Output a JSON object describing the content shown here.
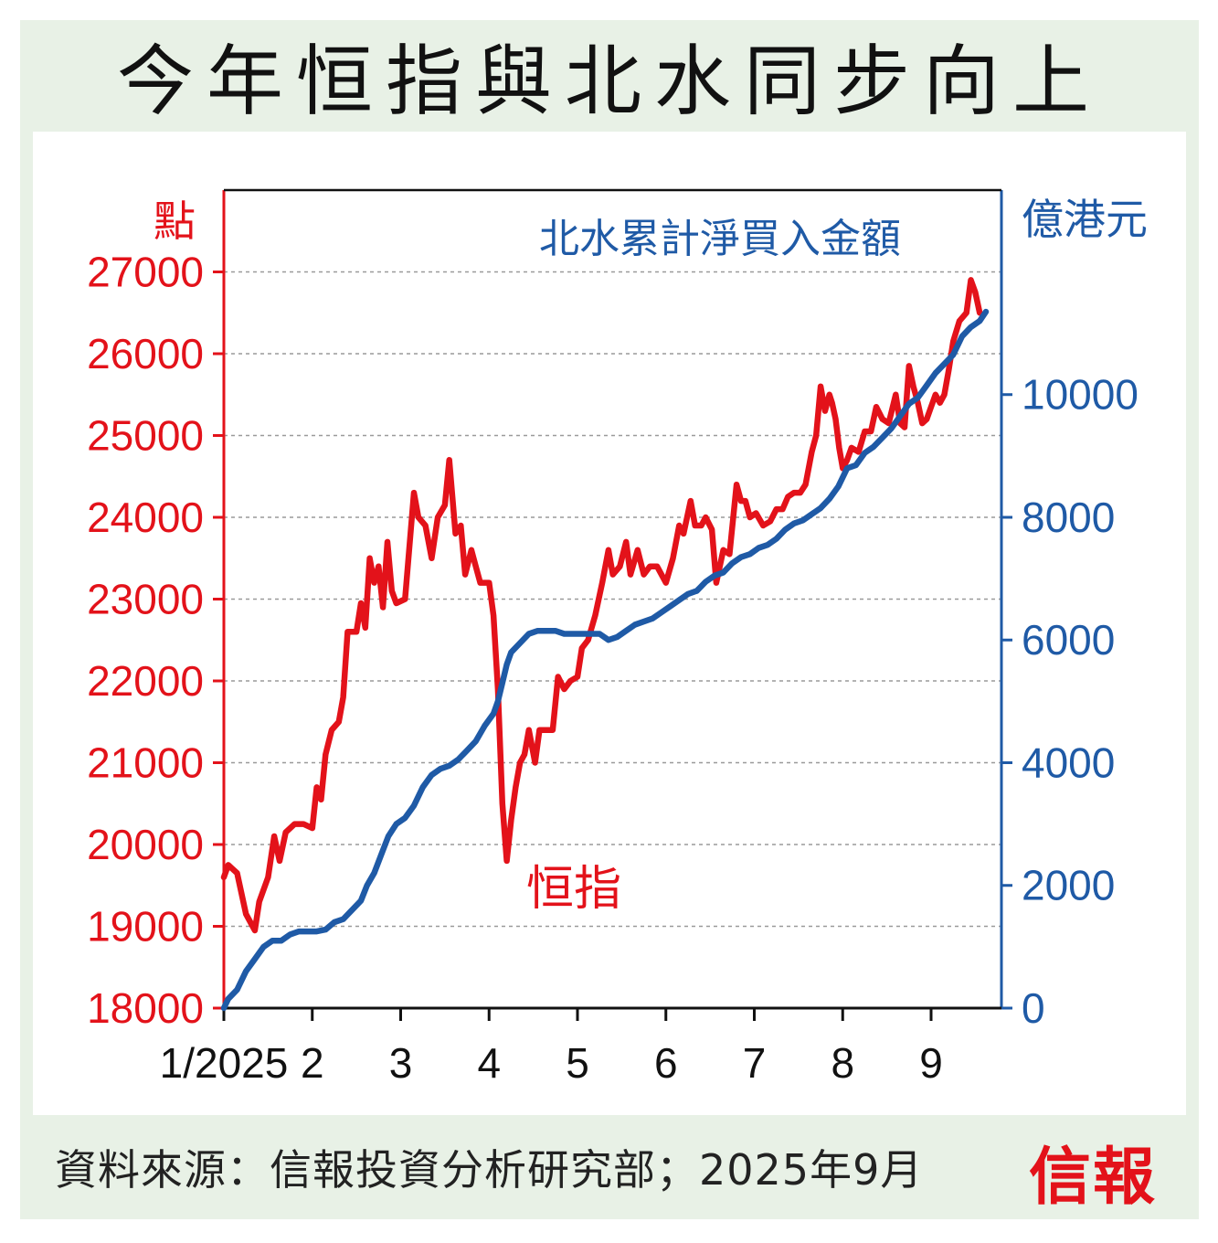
{
  "title": "今年恒指與北水同步向上",
  "source": "資料來源：信報投資分析研究部；2025年9月",
  "logo": "信報",
  "colors": {
    "hsi": "#e3121a",
    "northbound": "#1f5aa6",
    "frame": "#e8f1e6"
  },
  "chart_data": {
    "type": "line",
    "left_axis": {
      "unit_label": "點",
      "ylim": [
        18000,
        28000
      ],
      "ticks": [
        18000,
        19000,
        20000,
        21000,
        22000,
        23000,
        24000,
        25000,
        26000,
        27000
      ]
    },
    "right_axis": {
      "unit_label": "億港元",
      "ylim": [
        0,
        13333
      ],
      "ticks": [
        0,
        2000,
        4000,
        6000,
        8000,
        10000
      ]
    },
    "x_axis": {
      "ticks": [
        {
          "label": "1/2025",
          "x": 0
        },
        {
          "label": "2",
          "x": 1
        },
        {
          "label": "3",
          "x": 2
        },
        {
          "label": "4",
          "x": 3
        },
        {
          "label": "5",
          "x": 4
        },
        {
          "label": "6",
          "x": 5
        },
        {
          "label": "7",
          "x": 6
        },
        {
          "label": "8",
          "x": 7
        },
        {
          "label": "9",
          "x": 8
        }
      ],
      "xlim": [
        0,
        8.75
      ]
    },
    "grid": "horizontal dashed",
    "series": [
      {
        "name": "恒指",
        "axis": "left",
        "points": [
          [
            0.0,
            19600
          ],
          [
            0.05,
            19750
          ],
          [
            0.15,
            19650
          ],
          [
            0.25,
            19150
          ],
          [
            0.35,
            18950
          ],
          [
            0.4,
            19300
          ],
          [
            0.5,
            19600
          ],
          [
            0.57,
            20100
          ],
          [
            0.63,
            19800
          ],
          [
            0.7,
            20150
          ],
          [
            0.8,
            20250
          ],
          [
            0.9,
            20250
          ],
          [
            1.0,
            20200
          ],
          [
            1.05,
            20700
          ],
          [
            1.1,
            20550
          ],
          [
            1.15,
            21100
          ],
          [
            1.22,
            21400
          ],
          [
            1.3,
            21500
          ],
          [
            1.35,
            21800
          ],
          [
            1.4,
            22600
          ],
          [
            1.5,
            22600
          ],
          [
            1.55,
            22950
          ],
          [
            1.6,
            22650
          ],
          [
            1.65,
            23500
          ],
          [
            1.7,
            23200
          ],
          [
            1.75,
            23400
          ],
          [
            1.8,
            22900
          ],
          [
            1.85,
            23700
          ],
          [
            1.9,
            23100
          ],
          [
            1.95,
            22950
          ],
          [
            2.05,
            23000
          ],
          [
            2.15,
            24300
          ],
          [
            2.2,
            24000
          ],
          [
            2.28,
            23900
          ],
          [
            2.35,
            23500
          ],
          [
            2.42,
            24000
          ],
          [
            2.5,
            24150
          ],
          [
            2.55,
            24700
          ],
          [
            2.62,
            23800
          ],
          [
            2.68,
            23900
          ],
          [
            2.73,
            23300
          ],
          [
            2.8,
            23600
          ],
          [
            2.85,
            23400
          ],
          [
            2.9,
            23200
          ],
          [
            3.0,
            23200
          ],
          [
            3.05,
            22800
          ],
          [
            3.1,
            21900
          ],
          [
            3.15,
            20500
          ],
          [
            3.2,
            19800
          ],
          [
            3.25,
            20300
          ],
          [
            3.3,
            20700
          ],
          [
            3.35,
            21000
          ],
          [
            3.4,
            21100
          ],
          [
            3.45,
            21400
          ],
          [
            3.52,
            21000
          ],
          [
            3.57,
            21400
          ],
          [
            3.65,
            21400
          ],
          [
            3.72,
            21400
          ],
          [
            3.78,
            22050
          ],
          [
            3.85,
            21900
          ],
          [
            3.92,
            22000
          ],
          [
            4.0,
            22050
          ],
          [
            4.05,
            22400
          ],
          [
            4.12,
            22500
          ],
          [
            4.2,
            22800
          ],
          [
            4.28,
            23200
          ],
          [
            4.35,
            23600
          ],
          [
            4.4,
            23300
          ],
          [
            4.48,
            23400
          ],
          [
            4.55,
            23700
          ],
          [
            4.6,
            23300
          ],
          [
            4.68,
            23600
          ],
          [
            4.75,
            23300
          ],
          [
            4.82,
            23400
          ],
          [
            4.9,
            23400
          ],
          [
            5.0,
            23200
          ],
          [
            5.08,
            23500
          ],
          [
            5.15,
            23900
          ],
          [
            5.2,
            23800
          ],
          [
            5.28,
            24200
          ],
          [
            5.33,
            23900
          ],
          [
            5.4,
            23900
          ],
          [
            5.45,
            24000
          ],
          [
            5.52,
            23850
          ],
          [
            5.57,
            23200
          ],
          [
            5.65,
            23600
          ],
          [
            5.72,
            23550
          ],
          [
            5.8,
            24400
          ],
          [
            5.85,
            24200
          ],
          [
            5.9,
            24200
          ],
          [
            5.95,
            24000
          ],
          [
            6.02,
            24050
          ],
          [
            6.1,
            23900
          ],
          [
            6.18,
            23950
          ],
          [
            6.25,
            24100
          ],
          [
            6.32,
            24100
          ],
          [
            6.38,
            24250
          ],
          [
            6.45,
            24300
          ],
          [
            6.52,
            24300
          ],
          [
            6.58,
            24400
          ],
          [
            6.65,
            24800
          ],
          [
            6.7,
            25000
          ],
          [
            6.75,
            25600
          ],
          [
            6.8,
            25300
          ],
          [
            6.85,
            25500
          ],
          [
            6.88,
            25400
          ],
          [
            6.92,
            25200
          ],
          [
            6.96,
            24850
          ],
          [
            7.0,
            24600
          ],
          [
            7.05,
            24700
          ],
          [
            7.1,
            24850
          ],
          [
            7.18,
            24800
          ],
          [
            7.25,
            25050
          ],
          [
            7.32,
            25050
          ],
          [
            7.38,
            25350
          ],
          [
            7.45,
            25200
          ],
          [
            7.52,
            25150
          ],
          [
            7.6,
            25500
          ],
          [
            7.65,
            25150
          ],
          [
            7.7,
            25100
          ],
          [
            7.75,
            25850
          ],
          [
            7.8,
            25600
          ],
          [
            7.85,
            25400
          ],
          [
            7.9,
            25150
          ],
          [
            7.95,
            25200
          ],
          [
            8.0,
            25350
          ],
          [
            8.05,
            25500
          ],
          [
            8.1,
            25400
          ],
          [
            8.15,
            25500
          ],
          [
            8.2,
            25800
          ],
          [
            8.25,
            26150
          ],
          [
            8.32,
            26400
          ],
          [
            8.4,
            26500
          ],
          [
            8.45,
            26900
          ],
          [
            8.5,
            26750
          ],
          [
            8.55,
            26500
          ]
        ]
      },
      {
        "name": "北水累計淨買入金額",
        "axis": "right",
        "points": [
          [
            0.0,
            0
          ],
          [
            0.05,
            150
          ],
          [
            0.15,
            300
          ],
          [
            0.25,
            600
          ],
          [
            0.35,
            800
          ],
          [
            0.45,
            1000
          ],
          [
            0.55,
            1100
          ],
          [
            0.65,
            1100
          ],
          [
            0.75,
            1200
          ],
          [
            0.85,
            1250
          ],
          [
            0.95,
            1250
          ],
          [
            1.05,
            1250
          ],
          [
            1.15,
            1280
          ],
          [
            1.25,
            1400
          ],
          [
            1.35,
            1450
          ],
          [
            1.45,
            1600
          ],
          [
            1.55,
            1750
          ],
          [
            1.62,
            2000
          ],
          [
            1.7,
            2200
          ],
          [
            1.78,
            2500
          ],
          [
            1.86,
            2800
          ],
          [
            1.95,
            3000
          ],
          [
            2.05,
            3100
          ],
          [
            2.15,
            3300
          ],
          [
            2.25,
            3600
          ],
          [
            2.35,
            3800
          ],
          [
            2.45,
            3900
          ],
          [
            2.55,
            3950
          ],
          [
            2.65,
            4050
          ],
          [
            2.75,
            4200
          ],
          [
            2.85,
            4350
          ],
          [
            2.95,
            4600
          ],
          [
            3.05,
            4800
          ],
          [
            3.1,
            5000
          ],
          [
            3.15,
            5300
          ],
          [
            3.2,
            5600
          ],
          [
            3.25,
            5800
          ],
          [
            3.35,
            5950
          ],
          [
            3.45,
            6100
          ],
          [
            3.55,
            6150
          ],
          [
            3.65,
            6150
          ],
          [
            3.75,
            6150
          ],
          [
            3.85,
            6100
          ],
          [
            3.95,
            6100
          ],
          [
            4.05,
            6100
          ],
          [
            4.15,
            6100
          ],
          [
            4.25,
            6100
          ],
          [
            4.35,
            6000
          ],
          [
            4.45,
            6050
          ],
          [
            4.55,
            6150
          ],
          [
            4.65,
            6250
          ],
          [
            4.75,
            6300
          ],
          [
            4.85,
            6350
          ],
          [
            4.95,
            6450
          ],
          [
            5.05,
            6550
          ],
          [
            5.15,
            6650
          ],
          [
            5.25,
            6750
          ],
          [
            5.35,
            6800
          ],
          [
            5.45,
            6950
          ],
          [
            5.55,
            7050
          ],
          [
            5.65,
            7100
          ],
          [
            5.75,
            7250
          ],
          [
            5.85,
            7350
          ],
          [
            5.95,
            7400
          ],
          [
            6.05,
            7500
          ],
          [
            6.15,
            7550
          ],
          [
            6.25,
            7650
          ],
          [
            6.35,
            7800
          ],
          [
            6.45,
            7900
          ],
          [
            6.55,
            7950
          ],
          [
            6.65,
            8050
          ],
          [
            6.75,
            8150
          ],
          [
            6.85,
            8300
          ],
          [
            6.95,
            8500
          ],
          [
            7.05,
            8800
          ],
          [
            7.15,
            8850
          ],
          [
            7.25,
            9050
          ],
          [
            7.35,
            9150
          ],
          [
            7.45,
            9300
          ],
          [
            7.55,
            9450
          ],
          [
            7.65,
            9650
          ],
          [
            7.75,
            9850
          ],
          [
            7.85,
            9950
          ],
          [
            7.95,
            10150
          ],
          [
            8.05,
            10350
          ],
          [
            8.15,
            10500
          ],
          [
            8.25,
            10650
          ],
          [
            8.35,
            10950
          ],
          [
            8.45,
            11100
          ],
          [
            8.55,
            11200
          ],
          [
            8.62,
            11350
          ]
        ]
      }
    ],
    "annotations": [
      {
        "text": "恒指",
        "series": "恒指"
      },
      {
        "text": "北水累計淨買入金額",
        "series": "北水累計淨買入金額"
      }
    ]
  }
}
